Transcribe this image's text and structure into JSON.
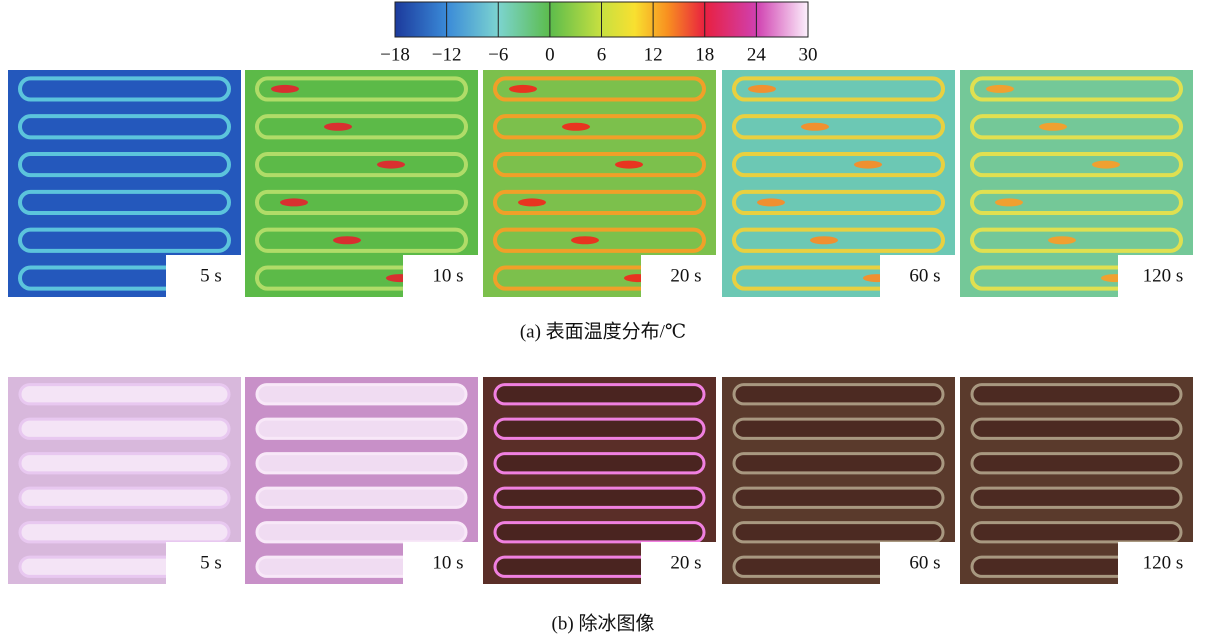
{
  "colorbar": {
    "ticks": [
      {
        "value": -18,
        "label": "−18"
      },
      {
        "value": -12,
        "label": "−12"
      },
      {
        "value": -6,
        "label": "−6"
      },
      0,
      6,
      12,
      18,
      24,
      30
    ]
  },
  "panels_a": {
    "labels": [
      "5 s",
      "10 s",
      "20 s",
      "60 s",
      "120 s"
    ],
    "caption": "(a) 表面温度分布/℃"
  },
  "panels_b": {
    "labels": [
      "5 s",
      "10 s",
      "20 s",
      "60 s",
      "120 s"
    ],
    "caption": "(b) 除冰图像"
  }
}
